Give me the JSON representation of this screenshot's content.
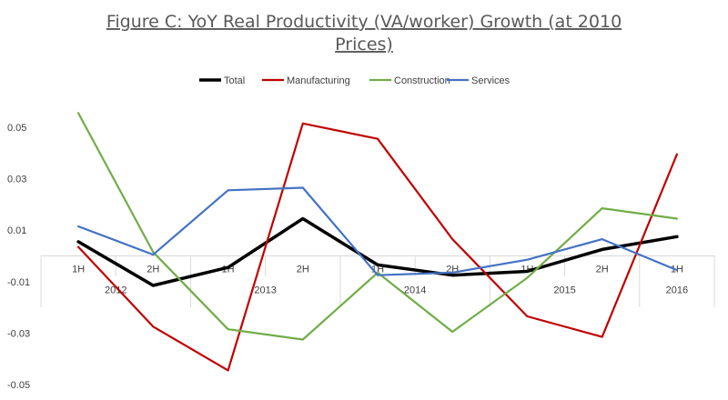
{
  "chart_data": {
    "type": "line",
    "title_line1": "Figure C: YoY Real Productivity (VA/worker) Growth (at 2010",
    "title_line2": "Prices)",
    "xlabel": "",
    "ylabel": "",
    "ylim": [
      -0.05,
      0.06
    ],
    "yticks": [
      -0.05,
      -0.03,
      -0.01,
      0.01,
      0.03,
      0.05
    ],
    "ytick_labels": [
      "-0.05",
      "-0.03",
      "-0.01",
      "0.01",
      "0.03",
      "0.05"
    ],
    "categories": [
      "1H",
      "2H",
      "1H",
      "2H",
      "1H",
      "2H",
      "1H",
      "2H",
      "1H"
    ],
    "groups": [
      {
        "label": "2012",
        "span": 2
      },
      {
        "label": "2013",
        "span": 2
      },
      {
        "label": "2014",
        "span": 2
      },
      {
        "label": "2015",
        "span": 2
      },
      {
        "label": "2016",
        "span": 1
      }
    ],
    "legend_position": "top",
    "grid": false,
    "series": [
      {
        "name": "Total",
        "color": "#000000",
        "values": [
          0.0055,
          -0.0115,
          -0.0045,
          0.0145,
          -0.0035,
          -0.0075,
          -0.006,
          0.0025,
          0.0075
        ]
      },
      {
        "name": "Manufacturing",
        "color": "#c00000",
        "values": [
          0.0035,
          -0.0275,
          -0.0445,
          0.0515,
          0.0455,
          0.0065,
          -0.0235,
          -0.0315,
          0.0395
        ]
      },
      {
        "name": "Construction",
        "color": "#70ad47",
        "values": [
          0.0555,
          0.0015,
          -0.0285,
          -0.0325,
          -0.0065,
          -0.0295,
          -0.0085,
          0.0185,
          0.0145
        ]
      },
      {
        "name": "Services",
        "color": "#4472c4",
        "values": [
          0.0115,
          0.0005,
          0.0255,
          0.0265,
          -0.0075,
          -0.0065,
          -0.0015,
          0.0065,
          -0.0055
        ]
      }
    ]
  }
}
